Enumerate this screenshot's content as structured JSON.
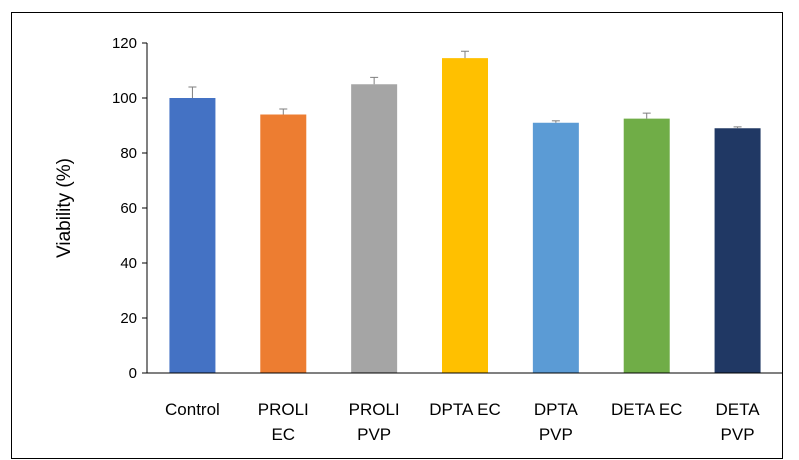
{
  "chart_data": {
    "type": "bar",
    "title": "",
    "xlabel": "",
    "ylabel": "Viability (%)",
    "ylim": [
      0,
      120
    ],
    "yticks": [
      0,
      20,
      40,
      60,
      80,
      100,
      120
    ],
    "grid": false,
    "legend": "none",
    "categories": [
      [
        "Control"
      ],
      [
        "PROLI",
        "EC"
      ],
      [
        "PROLI",
        "PVP"
      ],
      [
        "DPTA EC"
      ],
      [
        "DPTA",
        "PVP"
      ],
      [
        "DETA EC"
      ],
      [
        "DETA",
        "PVP"
      ]
    ],
    "values": [
      100,
      94,
      105,
      114.5,
      91,
      92.5,
      89
    ],
    "errors": [
      4,
      2,
      2.5,
      2.5,
      0.7,
      2,
      0.5
    ],
    "colors": [
      "#4472C4",
      "#ED7D31",
      "#A5A5A5",
      "#FFC000",
      "#5B9BD5",
      "#70AD47",
      "#203864"
    ],
    "axis_color": "#000000",
    "error_color": "#7F7F7F"
  }
}
